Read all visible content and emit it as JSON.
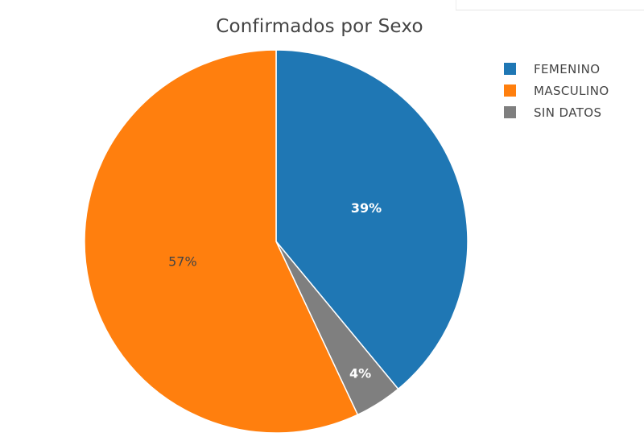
{
  "chart_data": {
    "type": "pie",
    "title": "Confirmados por Sexo",
    "slices": [
      {
        "label": "FEMENINO",
        "value": 39,
        "text": "39%",
        "color": "#1f77b4",
        "text_color": "#ffffff",
        "text_weight": "bold"
      },
      {
        "label": "SIN DATOS",
        "value": 4,
        "text": "4%",
        "color": "#7f7f7f",
        "text_color": "#ffffff",
        "text_weight": "bold"
      },
      {
        "label": "MASCULINO",
        "value": 57,
        "text": "57%",
        "color": "#ff7f0e",
        "text_color": "#444444",
        "text_weight": "normal"
      }
    ],
    "legend": {
      "placement": "top-right",
      "entries": [
        {
          "label": "FEMENINO",
          "color": "#1f77b4"
        },
        {
          "label": "MASCULINO",
          "color": "#ff7f0e"
        },
        {
          "label": "SIN DATOS",
          "color": "#7f7f7f"
        }
      ]
    },
    "direction": "clockwise",
    "start": "12 o'clock"
  }
}
